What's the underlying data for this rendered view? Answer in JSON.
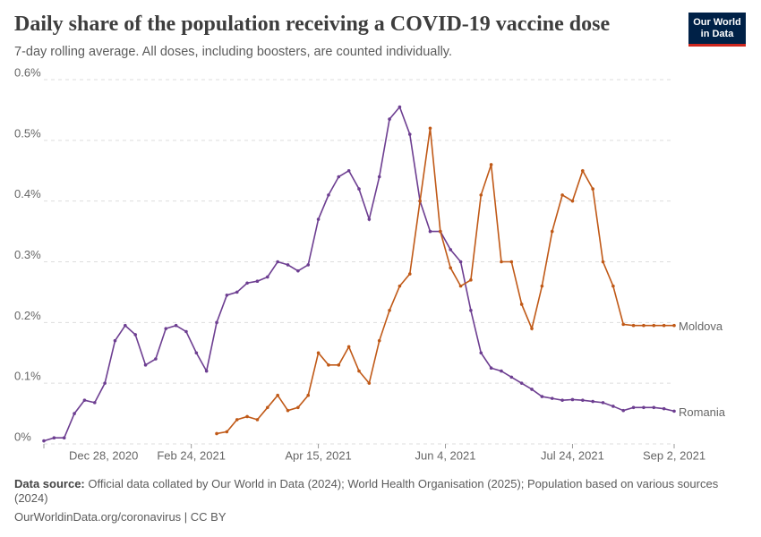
{
  "chart_data": {
    "type": "line",
    "title": "Daily share of the population receiving a COVID-19 vaccine dose",
    "subtitle": "7-day rolling average. All doses, including boosters, are counted individually.",
    "logo": [
      "Our World",
      "in Data"
    ],
    "source_label": "Data source:",
    "source": "Official data collated by Our World in Data (2024); World Health Organisation (2025); Population based on various sources (2024)",
    "footer": "OurWorldinData.org/coronavirus | CC BY",
    "x": [
      "2020-12-28",
      "2021-01-01",
      "2021-01-05",
      "2021-01-09",
      "2021-01-13",
      "2021-01-17",
      "2021-01-21",
      "2021-01-25",
      "2021-01-29",
      "2021-02-02",
      "2021-02-06",
      "2021-02-10",
      "2021-02-14",
      "2021-02-18",
      "2021-02-22",
      "2021-02-26",
      "2021-03-02",
      "2021-03-06",
      "2021-03-10",
      "2021-03-14",
      "2021-03-18",
      "2021-03-22",
      "2021-03-26",
      "2021-03-30",
      "2021-04-03",
      "2021-04-07",
      "2021-04-11",
      "2021-04-15",
      "2021-04-19",
      "2021-04-23",
      "2021-04-27",
      "2021-05-01",
      "2021-05-05",
      "2021-05-09",
      "2021-05-13",
      "2021-05-17",
      "2021-05-21",
      "2021-05-25",
      "2021-05-29",
      "2021-06-02",
      "2021-06-06",
      "2021-06-10",
      "2021-06-14",
      "2021-06-18",
      "2021-06-22",
      "2021-06-26",
      "2021-06-30",
      "2021-07-04",
      "2021-07-08",
      "2021-07-12",
      "2021-07-16",
      "2021-07-20",
      "2021-07-24",
      "2021-07-28",
      "2021-08-01",
      "2021-08-05",
      "2021-08-09",
      "2021-08-13",
      "2021-08-17",
      "2021-08-21",
      "2021-08-25",
      "2021-08-29",
      "2021-09-02"
    ],
    "series": [
      {
        "name": "Romania",
        "color": "#6d3e91",
        "values": [
          0.005,
          0.01,
          0.01,
          0.05,
          0.072,
          0.068,
          0.1,
          0.17,
          0.195,
          0.18,
          0.13,
          0.14,
          0.19,
          0.195,
          0.185,
          0.15,
          0.12,
          0.2,
          0.245,
          0.25,
          0.265,
          0.268,
          0.275,
          0.3,
          0.295,
          0.285,
          0.295,
          0.37,
          0.41,
          0.44,
          0.45,
          0.42,
          0.37,
          0.44,
          0.535,
          0.555,
          0.51,
          0.4,
          0.35,
          0.35,
          0.32,
          0.3,
          0.22,
          0.15,
          0.125,
          0.12,
          0.11,
          0.1,
          0.09,
          0.078,
          0.075,
          0.072,
          0.073,
          0.072,
          0.07,
          0.068,
          0.062,
          0.055,
          0.06,
          0.06,
          0.06,
          0.058,
          0.054
        ]
      },
      {
        "name": "Moldova",
        "color": "#c05917",
        "values": [
          null,
          null,
          null,
          null,
          null,
          null,
          null,
          null,
          null,
          null,
          null,
          null,
          null,
          null,
          null,
          null,
          null,
          0.017,
          0.02,
          0.04,
          0.045,
          0.04,
          0.06,
          0.08,
          0.055,
          0.06,
          0.08,
          0.15,
          0.13,
          0.13,
          0.16,
          0.12,
          0.1,
          0.17,
          0.22,
          0.26,
          0.28,
          0.4,
          0.52,
          0.35,
          0.29,
          0.26,
          0.27,
          0.41,
          0.46,
          0.3,
          0.3,
          0.23,
          0.19,
          0.26,
          0.35,
          0.41,
          0.4,
          0.45,
          0.42,
          0.3,
          0.26,
          0.197,
          0.195,
          0.195,
          0.195,
          0.195,
          0.195
        ]
      }
    ],
    "xlim": [
      "2020-12-28",
      "2021-09-02"
    ],
    "xticks": [
      {
        "value": "2020-12-28",
        "label": "Dec 28, 2020"
      },
      {
        "value": "2021-02-24",
        "label": "Feb 24, 2021"
      },
      {
        "value": "2021-04-15",
        "label": "Apr 15, 2021"
      },
      {
        "value": "2021-06-04",
        "label": "Jun 4, 2021"
      },
      {
        "value": "2021-07-24",
        "label": "Jul 24, 2021"
      },
      {
        "value": "2021-09-02",
        "label": "Sep 2, 2021"
      }
    ],
    "ylim": [
      0,
      0.6
    ],
    "yticks": [
      {
        "value": 0,
        "label": "0%"
      },
      {
        "value": 0.1,
        "label": "0.1%"
      },
      {
        "value": 0.2,
        "label": "0.2%"
      },
      {
        "value": 0.3,
        "label": "0.3%"
      },
      {
        "value": 0.4,
        "label": "0.4%"
      },
      {
        "value": 0.5,
        "label": "0.5%"
      },
      {
        "value": 0.6,
        "label": "0.6%"
      }
    ],
    "grid": true
  }
}
